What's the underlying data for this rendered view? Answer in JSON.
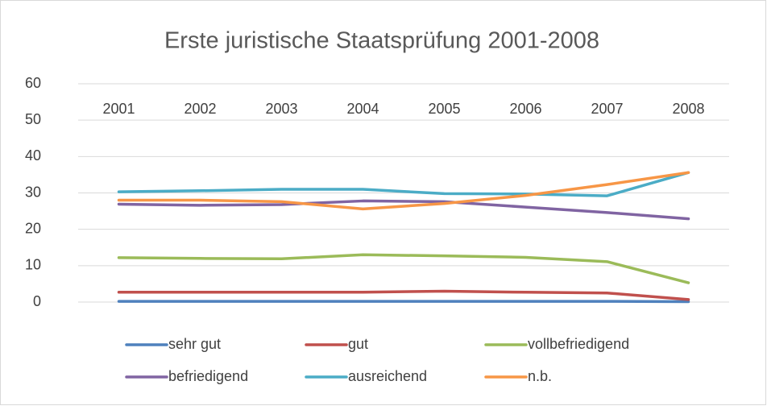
{
  "chart_data": {
    "type": "line",
    "title": "Erste juristische Staatsprüfung 2001-2008",
    "categories": [
      "2001",
      "2002",
      "2003",
      "2004",
      "2005",
      "2006",
      "2007",
      "2008"
    ],
    "series": [
      {
        "name": "sehr gut",
        "color": "#4f81bd",
        "values": [
          0.2,
          0.2,
          0.2,
          0.2,
          0.2,
          0.2,
          0.2,
          0.1
        ]
      },
      {
        "name": "gut",
        "color": "#c0504d",
        "values": [
          2.7,
          2.7,
          2.7,
          2.7,
          3.0,
          2.7,
          2.5,
          0.7
        ]
      },
      {
        "name": "vollbefriedigend",
        "color": "#9bbb59",
        "values": [
          12.2,
          12.0,
          11.9,
          13.0,
          12.7,
          12.3,
          11.1,
          5.3
        ]
      },
      {
        "name": "befriedigend",
        "color": "#8064a2",
        "values": [
          26.9,
          26.6,
          26.8,
          27.8,
          27.6,
          26.1,
          24.6,
          22.9
        ]
      },
      {
        "name": "ausreichend",
        "color": "#4bacc6",
        "values": [
          30.3,
          30.6,
          31.0,
          31.0,
          29.8,
          29.7,
          29.2,
          35.6
        ]
      },
      {
        "name": "n.b.",
        "color": "#f79646",
        "values": [
          28.0,
          28.0,
          27.6,
          25.6,
          27.1,
          29.3,
          32.3,
          35.6
        ]
      }
    ],
    "ylim": [
      0,
      60
    ],
    "yticks": [
      0,
      10,
      20,
      30,
      40,
      50,
      60
    ],
    "grid": true
  }
}
